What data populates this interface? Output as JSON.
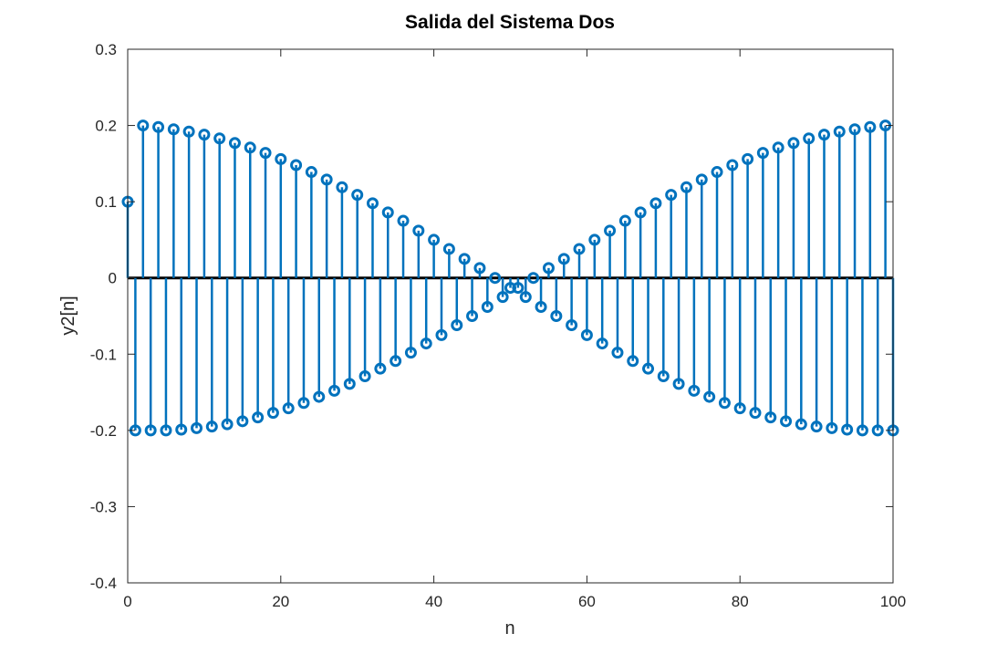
{
  "chart_data": {
    "type": "stem",
    "title": "Salida del Sistema Dos",
    "xlabel": "n",
    "ylabel": "y2[n]",
    "xlim": [
      0,
      100
    ],
    "ylim": [
      -0.4,
      0.3
    ],
    "xticks": [
      "0",
      "20",
      "40",
      "60",
      "80",
      "100"
    ],
    "yticks": [
      "-0.4",
      "-0.3",
      "-0.2",
      "-0.1",
      "0",
      "0.1",
      "0.2",
      "0.3"
    ],
    "grid": false,
    "box": true,
    "series": [
      {
        "color": "#0072BD",
        "x": [
          0,
          1,
          2,
          3,
          4,
          5,
          6,
          7,
          8,
          9,
          10,
          11,
          12,
          13,
          14,
          15,
          16,
          17,
          18,
          19,
          20,
          21,
          22,
          23,
          24,
          25,
          26,
          27,
          28,
          29,
          30,
          31,
          32,
          33,
          34,
          35,
          36,
          37,
          38,
          39,
          40,
          41,
          42,
          43,
          44,
          45,
          46,
          47,
          48,
          49,
          50,
          51,
          52,
          53,
          54,
          55,
          56,
          57,
          58,
          59,
          60,
          61,
          62,
          63,
          64,
          65,
          66,
          67,
          68,
          69,
          70,
          71,
          72,
          73,
          74,
          75,
          76,
          77,
          78,
          79,
          80,
          81,
          82,
          83,
          84,
          85,
          86,
          87,
          88,
          89,
          90,
          91,
          92,
          93,
          94,
          95,
          96,
          97,
          98,
          99,
          100
        ],
        "y": [
          0.1,
          -0.2,
          0.2,
          -0.2,
          0.198,
          -0.2,
          0.195,
          -0.199,
          0.192,
          -0.197,
          0.188,
          -0.195,
          0.183,
          -0.192,
          0.177,
          -0.188,
          0.171,
          -0.183,
          0.164,
          -0.177,
          0.156,
          -0.171,
          0.148,
          -0.164,
          0.139,
          -0.156,
          0.129,
          -0.148,
          0.119,
          -0.139,
          0.109,
          -0.129,
          0.098,
          -0.119,
          0.086,
          -0.109,
          0.075,
          -0.098,
          0.062,
          -0.086,
          0.05,
          -0.075,
          0.038,
          -0.062,
          0.025,
          -0.05,
          0.013,
          -0.038,
          0.0,
          -0.025,
          -0.013,
          -0.013,
          -0.025,
          0.0,
          -0.038,
          0.013,
          -0.05,
          0.025,
          -0.062,
          0.038,
          -0.075,
          0.05,
          -0.086,
          0.062,
          -0.098,
          0.075,
          -0.109,
          0.086,
          -0.119,
          0.098,
          -0.129,
          0.109,
          -0.139,
          0.119,
          -0.148,
          0.129,
          -0.156,
          0.139,
          -0.164,
          0.148,
          -0.171,
          0.156,
          -0.177,
          0.164,
          -0.183,
          0.171,
          -0.188,
          0.177,
          -0.192,
          0.183,
          -0.195,
          0.188,
          -0.197,
          0.192,
          -0.199,
          0.195,
          -0.2,
          0.198,
          -0.2,
          0.2,
          -0.2
        ]
      }
    ]
  }
}
